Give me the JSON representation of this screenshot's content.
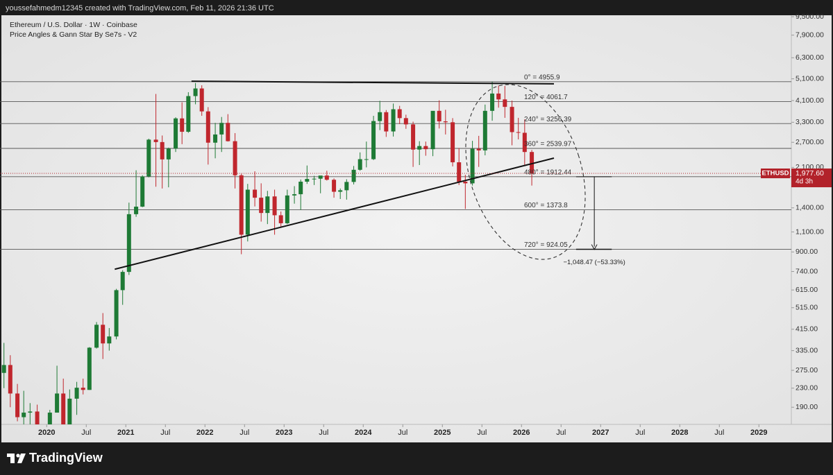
{
  "header": {
    "text": "youssefahmedm12345 created with TradingView.com, Feb 11, 2026 21:36 UTC"
  },
  "chart_data": {
    "type": "candlestick",
    "title": "Ethereum / U.S. Dollar · 1W · Coinbase",
    "subtitle": "Price Angles & Gann Star By Se7s - V2",
    "x": [
      2019.46,
      2019.54,
      2019.63,
      2019.71,
      2019.79,
      2019.88,
      2019.96,
      2020.04,
      2020.13,
      2020.21,
      2020.29,
      2020.38,
      2020.46,
      2020.54,
      2020.63,
      2020.71,
      2020.79,
      2020.88,
      2020.96,
      2021.04,
      2021.13,
      2021.21,
      2021.29,
      2021.38,
      2021.46,
      2021.54,
      2021.63,
      2021.71,
      2021.79,
      2021.88,
      2021.96,
      2022.04,
      2022.13,
      2022.21,
      2022.29,
      2022.38,
      2022.46,
      2022.54,
      2022.63,
      2022.71,
      2022.79,
      2022.88,
      2022.96,
      2023.04,
      2023.13,
      2023.21,
      2023.29,
      2023.38,
      2023.46,
      2023.54,
      2023.63,
      2023.71,
      2023.79,
      2023.88,
      2023.96,
      2024.04,
      2024.13,
      2024.21,
      2024.29,
      2024.38,
      2024.46,
      2024.54,
      2024.63,
      2024.71,
      2024.79,
      2024.88,
      2024.96,
      2025.04,
      2025.13,
      2025.21,
      2025.29,
      2025.38,
      2025.46,
      2025.54,
      2025.63,
      2025.71,
      2025.79,
      2025.88,
      2025.96,
      2026.04,
      2026.13
    ],
    "open": [
      268,
      290,
      218,
      172,
      180,
      182,
      151,
      130,
      180,
      218,
      133,
      207,
      231,
      226,
      345,
      434,
      360,
      386,
      614,
      737,
      1314,
      1417,
      1918,
      2773,
      2706,
      2275,
      2535,
      3430,
      3000,
      4290,
      4630,
      3680,
      2690,
      2920,
      3280,
      2730,
      1940,
      1070,
      1680,
      1550,
      1330,
      1570,
      1300,
      1200,
      1585,
      1605,
      1820,
      1870,
      1875,
      1935,
      1855,
      1645,
      1670,
      1815,
      2050,
      2280,
      2280,
      3340,
      3650,
      3010,
      3760,
      3440,
      3230,
      2510,
      2600,
      2520,
      3700,
      3330,
      3300,
      2210,
      1820,
      1790,
      2530,
      2490,
      3700,
      4400,
      4150,
      3850,
      2990,
      2970,
      2450
    ],
    "high": [
      362,
      320,
      240,
      224,
      198,
      195,
      155,
      185,
      288,
      253,
      227,
      245,
      253,
      347,
      446,
      488,
      420,
      622,
      750,
      1475,
      2040,
      1940,
      2800,
      4380,
      2890,
      2560,
      3470,
      4030,
      4460,
      4890,
      4780,
      3840,
      3280,
      3480,
      3580,
      2960,
      1970,
      1780,
      2020,
      1790,
      1660,
      1680,
      1350,
      1680,
      1740,
      1860,
      2140,
      1930,
      1930,
      2030,
      1880,
      1700,
      1865,
      2130,
      2440,
      2720,
      3520,
      4090,
      3730,
      3980,
      3890,
      3560,
      3320,
      2730,
      2720,
      3690,
      4110,
      3740,
      3440,
      2550,
      1950,
      2740,
      2880,
      3940,
      4955,
      4770,
      4750,
      4100,
      3450,
      3400,
      2500
    ],
    "low": [
      230,
      190,
      165,
      153,
      155,
      140,
      117,
      127,
      180,
      90,
      130,
      176,
      216,
      226,
      342,
      308,
      335,
      375,
      530,
      715,
      1280,
      1410,
      1900,
      1730,
      1700,
      1720,
      2450,
      2650,
      2970,
      3950,
      3520,
      2160,
      2300,
      2450,
      2720,
      1700,
      880,
      1000,
      1420,
      1220,
      1190,
      1070,
      1160,
      1190,
      1460,
      1370,
      1780,
      1760,
      1620,
      1840,
      1550,
      1530,
      1520,
      1770,
      2030,
      2100,
      2260,
      3050,
      2850,
      2860,
      3240,
      3090,
      2110,
      2150,
      2360,
      2350,
      3100,
      2920,
      2120,
      1760,
      1385,
      1750,
      2110,
      2370,
      3350,
      3820,
      3450,
      2620,
      2780,
      2150,
      1750
    ],
    "close": [
      290,
      218,
      172,
      180,
      182,
      151,
      130,
      180,
      218,
      133,
      207,
      231,
      226,
      345,
      434,
      360,
      386,
      614,
      737,
      1314,
      1417,
      1918,
      2773,
      2706,
      2275,
      2535,
      3430,
      3000,
      4290,
      4630,
      3680,
      2690,
      2920,
      3280,
      2730,
      1940,
      1070,
      1680,
      1550,
      1330,
      1570,
      1300,
      1200,
      1585,
      1605,
      1820,
      1870,
      1875,
      1935,
      1855,
      1645,
      1670,
      1815,
      2050,
      2280,
      2280,
      3340,
      3650,
      3010,
      3760,
      3440,
      3230,
      2510,
      2600,
      2520,
      3700,
      3330,
      3300,
      2210,
      1820,
      1790,
      2530,
      2490,
      3700,
      4400,
      4150,
      3850,
      2990,
      2970,
      2450,
      1977.6
    ],
    "up_color": "#1e7a35",
    "down_color": "#c0262d",
    "log_scale": true,
    "xlim": [
      2019.41,
      2029.41
    ],
    "ylim": [
      160,
      9640
    ],
    "xticks": [
      2020,
      {
        "value": 2020.5,
        "label": "Jul"
      },
      2021,
      {
        "value": 2021.5,
        "label": "Jul"
      },
      2022,
      {
        "value": 2022.5,
        "label": "Jul"
      },
      2023,
      {
        "value": 2023.5,
        "label": "Jul"
      },
      2024,
      {
        "value": 2024.5,
        "label": "Jul"
      },
      2025,
      {
        "value": 2025.5,
        "label": "Jul"
      },
      2026,
      {
        "value": 2026.5,
        "label": "Jul"
      },
      2027,
      {
        "value": 2027.5,
        "label": "Jul"
      },
      2028,
      {
        "value": 2028.5,
        "label": "Jul"
      },
      2029
    ],
    "yticks": [
      {
        "value": 9500,
        "label": "9,500.00"
      },
      {
        "value": 7900,
        "label": "7,900.00"
      },
      {
        "value": 6300,
        "label": "6,300.00"
      },
      {
        "value": 5100,
        "label": "5,100.00"
      },
      {
        "value": 4100,
        "label": "4,100.00"
      },
      {
        "value": 3300,
        "label": "3,300.00"
      },
      {
        "value": 2700,
        "label": "2,700.00"
      },
      {
        "value": 2100,
        "label": "2,100.00"
      },
      {
        "value": 1400,
        "label": "1,400.00"
      },
      {
        "value": 1100,
        "label": "1,100.00"
      },
      {
        "value": 900,
        "label": "900.00"
      },
      {
        "value": 740,
        "label": "740.00"
      },
      {
        "value": 615,
        "label": "615.00"
      },
      {
        "value": 515,
        "label": "515.00"
      },
      {
        "value": 415,
        "label": "415.00"
      },
      {
        "value": 335,
        "label": "335.00"
      },
      {
        "value": 275,
        "label": "275.00"
      },
      {
        "value": 230,
        "label": "230.00"
      },
      {
        "value": 190,
        "label": "190.00"
      }
    ],
    "levels": [
      {
        "value": 4955.9,
        "label": "0° = 4955.9"
      },
      {
        "value": 4061.7,
        "label": "120° = 4061.7"
      },
      {
        "value": 3256.39,
        "label": "240° = 3256.39"
      },
      {
        "value": 2539.97,
        "label": "360° = 2539.97"
      },
      {
        "value": 1912.44,
        "label": "480° = 1912.44"
      },
      {
        "value": 1373.8,
        "label": "600° = 1373.8"
      },
      {
        "value": 924.05,
        "label": "720° = 924.05"
      }
    ],
    "level_color": "#555555",
    "trendlines": [
      {
        "x": [
          2021.83,
          2026.41
        ],
        "y": [
          4978,
          4850
        ]
      },
      {
        "x": [
          2020.86,
          2026.41
        ],
        "y": [
          757,
          2305
        ]
      }
    ],
    "measure": {
      "from": 1912.44,
      "to": 924.05,
      "x": [
        2026.69,
        2027.14
      ],
      "arrow_x": 2026.92,
      "label": "−1,048.47 (−53.33%)"
    },
    "last_price": {
      "symbol": "ETHUSD",
      "value": 1977.6,
      "label": "1,977.60",
      "countdown": "4d 3h",
      "color": "#b2222a"
    }
  },
  "footer": {
    "brand": "TradingView"
  }
}
